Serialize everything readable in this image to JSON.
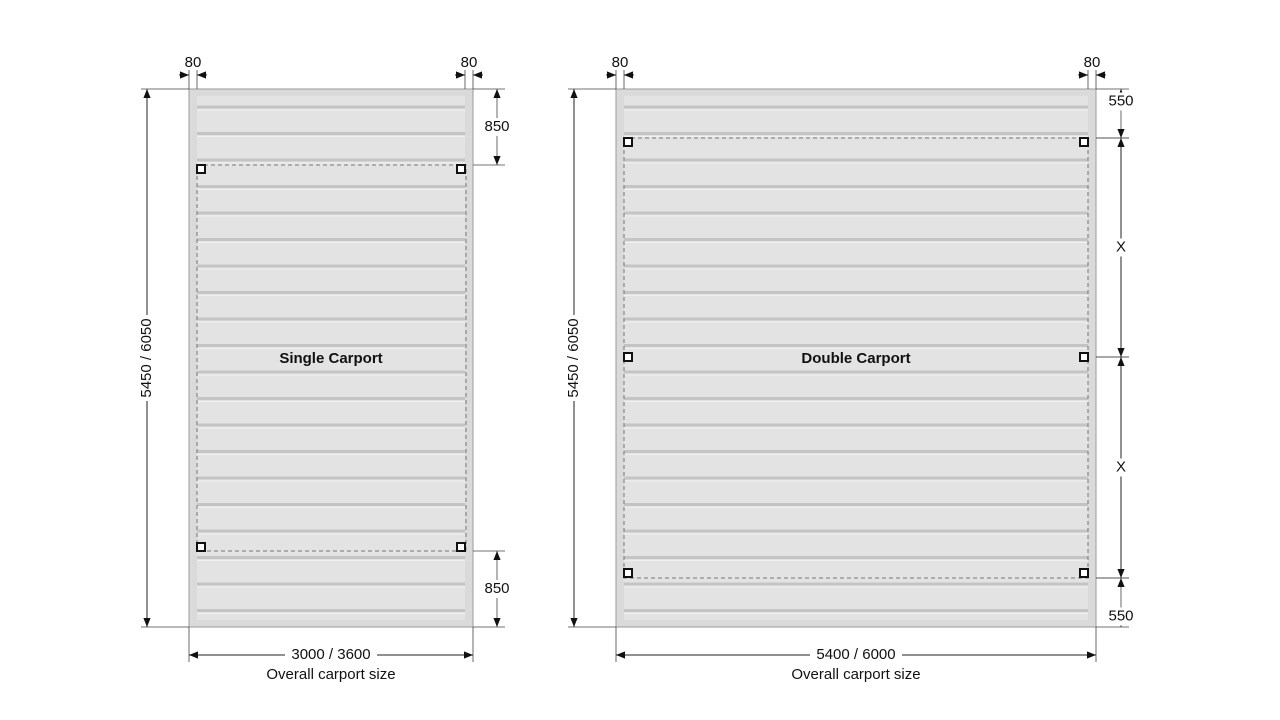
{
  "carports": [
    {
      "name": "Single Carport",
      "side_left": "80",
      "side_right": "80",
      "height": "5450 / 6050",
      "width": "3000 / 3600",
      "width_caption": "Overall carport size",
      "right_dims": [
        "850",
        "850"
      ]
    },
    {
      "name": "Double Carport",
      "side_left": "80",
      "side_right": "80",
      "height": "5450 / 6050",
      "width": "5400 / 6000",
      "width_caption": "Overall carport size",
      "right_dims": [
        "550",
        "X",
        "X",
        "550"
      ]
    }
  ]
}
